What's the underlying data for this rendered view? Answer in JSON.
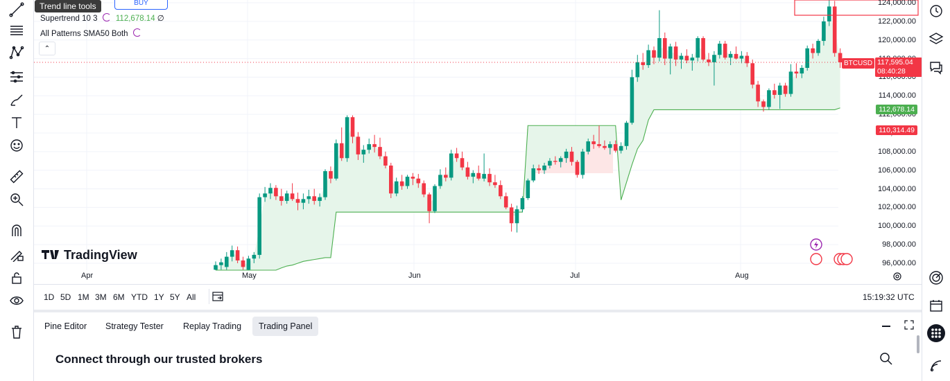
{
  "tooltip": "Trend line tools",
  "buy_label": "BUY",
  "indicators": {
    "supertrend_name": "Supertrend 10 3",
    "supertrend_value": "112,678.14",
    "supertrend_suffix": "∅",
    "patterns_name": "All Patterns SMA50 Both"
  },
  "price_axis": [
    "124,000.00",
    "122,000.00",
    "120,000.00",
    "118,000.00",
    "116,000.00",
    "114,000.00",
    "112,000.00",
    "110,000.00",
    "108,000.00",
    "106,000.00",
    "104,000.00",
    "102,000.00",
    "100,000.00",
    "98,000.00",
    "96,000.00"
  ],
  "price_labels": {
    "symbol": "BTCUSD",
    "last_price": "117,595.04",
    "countdown": "08:40:28",
    "supertrend": "112,678.14",
    "red_level": "110,314.49"
  },
  "time_axis": [
    "Apr",
    "May",
    "Jun",
    "Jul",
    "Aug"
  ],
  "logo_text": "TradingView",
  "ranges": [
    "1D",
    "5D",
    "1M",
    "3M",
    "6M",
    "YTD",
    "1Y",
    "5Y",
    "All"
  ],
  "clock": "15:19:32 UTC",
  "panel_tabs": [
    "Pine Editor",
    "Strategy Tester",
    "Replay Trading",
    "Trading Panel"
  ],
  "panel_heading": "Connect through our trusted brokers",
  "colors": {
    "up": "#089981",
    "down": "#f23645",
    "supertrend": "#4caf50",
    "accent": "#2962ff"
  },
  "left_tools": [
    "trend-line-icon",
    "fib-icon",
    "pattern-icon",
    "forecast-icon",
    "brush-icon",
    "text-icon",
    "emoji-icon",
    "ruler-icon",
    "zoom-in-icon",
    "magnet-icon",
    "lock-drawing-icon",
    "lock-icon",
    "eye-icon",
    "trash-icon"
  ],
  "right_tools": [
    "clock-icon",
    "layers-icon",
    "chat-icon",
    "target-icon",
    "calendar-icon",
    "apps-icon",
    "signal-icon"
  ],
  "chart_data": {
    "type": "candlestick",
    "symbol": "BTCUSD",
    "x_labels": [
      "Apr",
      "May",
      "Jun",
      "Jul",
      "Aug"
    ],
    "ylim": [
      95000,
      124500
    ],
    "last_price": 117595.04,
    "supertrend_value": 112678.14,
    "ohlc": [
      {
        "o": 95300,
        "h": 96200,
        "l": 94800,
        "c": 95800
      },
      {
        "o": 95800,
        "h": 96500,
        "l": 95300,
        "c": 96100
      },
      {
        "o": 95600,
        "h": 97200,
        "l": 95300,
        "c": 96700
      },
      {
        "o": 96700,
        "h": 97900,
        "l": 96200,
        "c": 97400
      },
      {
        "o": 97400,
        "h": 97800,
        "l": 96000,
        "c": 96300
      },
      {
        "o": 96300,
        "h": 96700,
        "l": 95300,
        "c": 95600
      },
      {
        "o": 95300,
        "h": 96800,
        "l": 95000,
        "c": 96500
      },
      {
        "o": 96500,
        "h": 97200,
        "l": 96000,
        "c": 96900
      },
      {
        "o": 96900,
        "h": 103500,
        "l": 96500,
        "c": 103100
      },
      {
        "o": 103100,
        "h": 104200,
        "l": 102600,
        "c": 103500
      },
      {
        "o": 103500,
        "h": 104600,
        "l": 102900,
        "c": 104100
      },
      {
        "o": 104100,
        "h": 104400,
        "l": 102800,
        "c": 103200
      },
      {
        "o": 103200,
        "h": 104000,
        "l": 102200,
        "c": 102700
      },
      {
        "o": 102700,
        "h": 103800,
        "l": 102400,
        "c": 103500
      },
      {
        "o": 103500,
        "h": 104600,
        "l": 102700,
        "c": 102900
      },
      {
        "o": 102900,
        "h": 103600,
        "l": 101700,
        "c": 102500
      },
      {
        "o": 102500,
        "h": 103500,
        "l": 101800,
        "c": 102900
      },
      {
        "o": 102900,
        "h": 103900,
        "l": 102400,
        "c": 103200
      },
      {
        "o": 103200,
        "h": 104000,
        "l": 102300,
        "c": 102700
      },
      {
        "o": 102700,
        "h": 103500,
        "l": 102100,
        "c": 103100
      },
      {
        "o": 103100,
        "h": 106100,
        "l": 102800,
        "c": 105900
      },
      {
        "o": 105900,
        "h": 106400,
        "l": 104600,
        "c": 105100
      },
      {
        "o": 105100,
        "h": 109300,
        "l": 104900,
        "c": 108900
      },
      {
        "o": 108900,
        "h": 110600,
        "l": 107000,
        "c": 107300
      },
      {
        "o": 107300,
        "h": 111900,
        "l": 106900,
        "c": 111700
      },
      {
        "o": 111700,
        "h": 111900,
        "l": 108900,
        "c": 109600
      },
      {
        "o": 109600,
        "h": 110100,
        "l": 107100,
        "c": 107700
      },
      {
        "o": 107700,
        "h": 108700,
        "l": 106800,
        "c": 108200
      },
      {
        "o": 108200,
        "h": 109400,
        "l": 107800,
        "c": 108800
      },
      {
        "o": 108800,
        "h": 109800,
        "l": 107900,
        "c": 108500
      },
      {
        "o": 108500,
        "h": 109500,
        "l": 107200,
        "c": 107500
      },
      {
        "o": 107500,
        "h": 108000,
        "l": 106200,
        "c": 106500
      },
      {
        "o": 106500,
        "h": 106800,
        "l": 103000,
        "c": 103500
      },
      {
        "o": 103500,
        "h": 105200,
        "l": 103200,
        "c": 104800
      },
      {
        "o": 104800,
        "h": 105500,
        "l": 103900,
        "c": 104300
      },
      {
        "o": 104300,
        "h": 105500,
        "l": 104000,
        "c": 105300
      },
      {
        "o": 105300,
        "h": 105700,
        "l": 104400,
        "c": 105100
      },
      {
        "o": 105100,
        "h": 105600,
        "l": 104100,
        "c": 104600
      },
      {
        "o": 104600,
        "h": 104900,
        "l": 103100,
        "c": 103400
      },
      {
        "o": 103400,
        "h": 103600,
        "l": 100300,
        "c": 101600
      },
      {
        "o": 101600,
        "h": 104500,
        "l": 101400,
        "c": 104300
      },
      {
        "o": 104300,
        "h": 106100,
        "l": 104000,
        "c": 105500
      },
      {
        "o": 105500,
        "h": 106300,
        "l": 104800,
        "c": 105200
      },
      {
        "o": 105200,
        "h": 108200,
        "l": 104900,
        "c": 107800
      },
      {
        "o": 107800,
        "h": 108400,
        "l": 106900,
        "c": 107300
      },
      {
        "o": 107300,
        "h": 108000,
        "l": 106000,
        "c": 106300
      },
      {
        "o": 106300,
        "h": 106900,
        "l": 105000,
        "c": 105300
      },
      {
        "o": 105300,
        "h": 106000,
        "l": 104600,
        "c": 105700
      },
      {
        "o": 105700,
        "h": 106500,
        "l": 104900,
        "c": 105100
      },
      {
        "o": 105100,
        "h": 107800,
        "l": 104800,
        "c": 105600
      },
      {
        "o": 105600,
        "h": 106200,
        "l": 104300,
        "c": 104700
      },
      {
        "o": 104700,
        "h": 105500,
        "l": 104100,
        "c": 104400
      },
      {
        "o": 104400,
        "h": 104900,
        "l": 102900,
        "c": 103200
      },
      {
        "o": 103200,
        "h": 103600,
        "l": 101800,
        "c": 102000
      },
      {
        "o": 102000,
        "h": 102400,
        "l": 99400,
        "c": 100300
      },
      {
        "o": 100300,
        "h": 102200,
        "l": 99300,
        "c": 101800
      },
      {
        "o": 101800,
        "h": 103200,
        "l": 101500,
        "c": 103000
      },
      {
        "o": 103000,
        "h": 105100,
        "l": 102800,
        "c": 104900
      },
      {
        "o": 104900,
        "h": 106600,
        "l": 104700,
        "c": 106200
      },
      {
        "o": 106200,
        "h": 106600,
        "l": 105600,
        "c": 106000
      },
      {
        "o": 106000,
        "h": 106800,
        "l": 105600,
        "c": 106500
      },
      {
        "o": 106500,
        "h": 107300,
        "l": 106200,
        "c": 107000
      },
      {
        "o": 107000,
        "h": 107500,
        "l": 106600,
        "c": 106900
      },
      {
        "o": 106900,
        "h": 107500,
        "l": 106300,
        "c": 107300
      },
      {
        "o": 107300,
        "h": 108300,
        "l": 106800,
        "c": 108000
      },
      {
        "o": 108000,
        "h": 108500,
        "l": 106500,
        "c": 106900
      },
      {
        "o": 106900,
        "h": 107100,
        "l": 105200,
        "c": 105500
      },
      {
        "o": 105500,
        "h": 108300,
        "l": 105100,
        "c": 108000
      },
      {
        "o": 108000,
        "h": 109400,
        "l": 107700,
        "c": 109100
      },
      {
        "o": 109100,
        "h": 109800,
        "l": 108300,
        "c": 108800
      },
      {
        "o": 108800,
        "h": 110800,
        "l": 108400,
        "c": 108600
      },
      {
        "o": 108600,
        "h": 109200,
        "l": 108200,
        "c": 108400
      },
      {
        "o": 108400,
        "h": 109100,
        "l": 107700,
        "c": 108800
      },
      {
        "o": 108800,
        "h": 109200,
        "l": 107900,
        "c": 108100
      },
      {
        "o": 108100,
        "h": 109000,
        "l": 107800,
        "c": 108600
      },
      {
        "o": 108600,
        "h": 111300,
        "l": 108200,
        "c": 111100
      },
      {
        "o": 111100,
        "h": 116800,
        "l": 110900,
        "c": 116000
      },
      {
        "o": 116000,
        "h": 118400,
        "l": 115500,
        "c": 117600
      },
      {
        "o": 117600,
        "h": 118600,
        "l": 116800,
        "c": 117300
      },
      {
        "o": 117300,
        "h": 119500,
        "l": 117000,
        "c": 118900
      },
      {
        "o": 118900,
        "h": 119300,
        "l": 117400,
        "c": 118100
      },
      {
        "o": 118100,
        "h": 123200,
        "l": 117700,
        "c": 120200
      },
      {
        "o": 120200,
        "h": 120800,
        "l": 117300,
        "c": 118000
      },
      {
        "o": 118000,
        "h": 119600,
        "l": 116300,
        "c": 119300
      },
      {
        "o": 119300,
        "h": 119800,
        "l": 117200,
        "c": 117900
      },
      {
        "o": 117900,
        "h": 118600,
        "l": 116900,
        "c": 118300
      },
      {
        "o": 118300,
        "h": 119000,
        "l": 117500,
        "c": 117800
      },
      {
        "o": 117800,
        "h": 118500,
        "l": 116700,
        "c": 118100
      },
      {
        "o": 118100,
        "h": 120400,
        "l": 117700,
        "c": 120200
      },
      {
        "o": 120200,
        "h": 120400,
        "l": 117700,
        "c": 117900
      },
      {
        "o": 117900,
        "h": 118600,
        "l": 117200,
        "c": 117600
      },
      {
        "o": 117600,
        "h": 118800,
        "l": 115100,
        "c": 118400
      },
      {
        "o": 118400,
        "h": 119900,
        "l": 118000,
        "c": 119600
      },
      {
        "o": 119600,
        "h": 119900,
        "l": 117900,
        "c": 118100
      },
      {
        "o": 118100,
        "h": 118800,
        "l": 117300,
        "c": 118500
      },
      {
        "o": 118500,
        "h": 119300,
        "l": 117900,
        "c": 118000
      },
      {
        "o": 118000,
        "h": 118800,
        "l": 117500,
        "c": 118300
      },
      {
        "o": 118300,
        "h": 118700,
        "l": 117100,
        "c": 117500
      },
      {
        "o": 117500,
        "h": 117900,
        "l": 114800,
        "c": 115200
      },
      {
        "o": 115200,
        "h": 115600,
        "l": 112800,
        "c": 113400
      },
      {
        "o": 113400,
        "h": 113600,
        "l": 112300,
        "c": 112800
      },
      {
        "o": 112800,
        "h": 114800,
        "l": 112500,
        "c": 114600
      },
      {
        "o": 114600,
        "h": 115300,
        "l": 113700,
        "c": 114100
      },
      {
        "o": 114100,
        "h": 115400,
        "l": 112600,
        "c": 115100
      },
      {
        "o": 115100,
        "h": 115400,
        "l": 113900,
        "c": 114200
      },
      {
        "o": 114200,
        "h": 117400,
        "l": 113900,
        "c": 116600
      },
      {
        "o": 116600,
        "h": 117500,
        "l": 115900,
        "c": 116400
      },
      {
        "o": 116400,
        "h": 117300,
        "l": 115900,
        "c": 117000
      },
      {
        "o": 117000,
        "h": 119400,
        "l": 116700,
        "c": 119100
      },
      {
        "o": 119100,
        "h": 119600,
        "l": 118000,
        "c": 118600
      },
      {
        "o": 118600,
        "h": 120100,
        "l": 118300,
        "c": 119900
      },
      {
        "o": 119900,
        "h": 122500,
        "l": 119400,
        "c": 122000
      },
      {
        "o": 122000,
        "h": 124500,
        "l": 121500,
        "c": 123600
      },
      {
        "o": 123600,
        "h": 124200,
        "l": 118200,
        "c": 118600
      },
      {
        "o": 118600,
        "h": 119100,
        "l": 117000,
        "c": 117595.04
      }
    ],
    "supertrend": [
      94500,
      94500,
      94500,
      94500,
      94500,
      94500,
      94500,
      94500,
      94500,
      94500,
      95000,
      95200,
      95500,
      95700,
      95800,
      96000,
      96200,
      96300,
      96400,
      96500,
      96600,
      96600,
      101500,
      101500,
      101500,
      101500,
      101500,
      101500,
      101500,
      101500,
      101500,
      101500,
      101500,
      101500,
      101500,
      101500,
      101500,
      101500,
      101500,
      101500,
      101500,
      101500,
      101500,
      101500,
      101500,
      101500,
      101500,
      101500,
      101500,
      101500,
      101500,
      101500,
      101500,
      101500,
      101500,
      101500,
      101500,
      110800,
      110800,
      110800,
      110800,
      110800,
      110800,
      110800,
      110800,
      110800,
      110800,
      110800,
      110800,
      110800,
      110800,
      110800,
      110800,
      110800,
      102800,
      104700,
      106600,
      108300,
      109200,
      111400,
      112500,
      112500,
      112500,
      112500,
      112500,
      112500,
      112500,
      112500,
      112500,
      112500,
      112500,
      112500,
      112500,
      112500,
      112500,
      112500,
      112500,
      112500,
      112500,
      112500,
      112500,
      112500,
      112500,
      112500,
      112500,
      112500,
      112500,
      112500,
      112500,
      112500,
      112500,
      112500,
      112500,
      112500,
      112700,
      112700
    ]
  }
}
